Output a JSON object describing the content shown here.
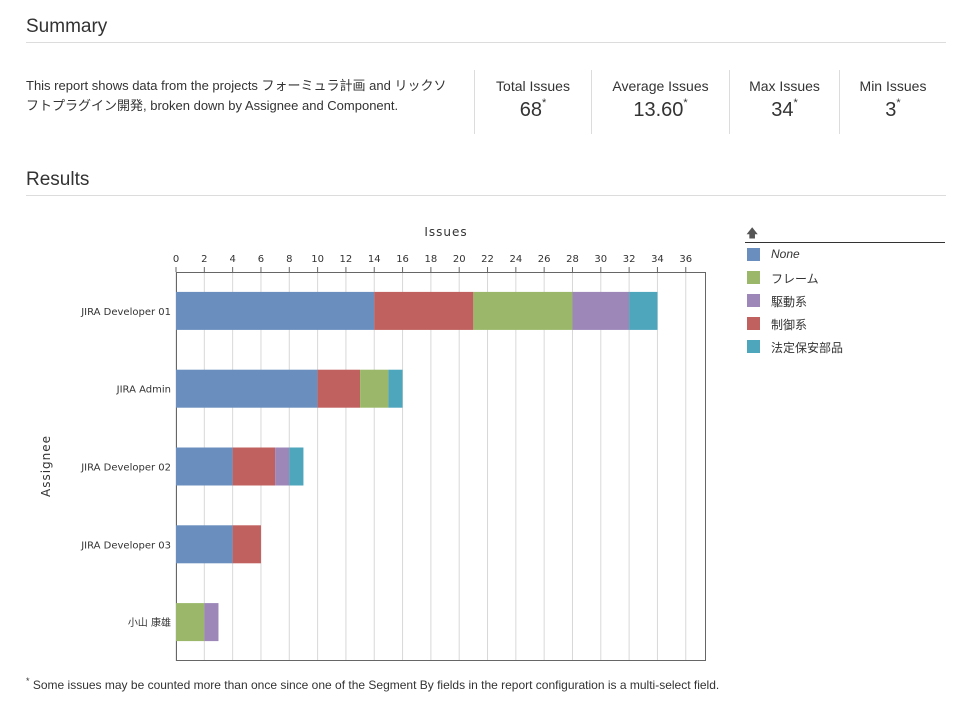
{
  "summary": {
    "title": "Summary",
    "description": "This report shows data from the projects フォーミュラ計画 and リックソフトプラグイン開発, broken down by Assignee and Component.",
    "stats": [
      {
        "label": "Total Issues",
        "value": "68",
        "mark": "*"
      },
      {
        "label": "Average Issues",
        "value": "13.60",
        "mark": "*"
      },
      {
        "label": "Max Issues",
        "value": "34",
        "mark": "*"
      },
      {
        "label": "Min Issues",
        "value": "3",
        "mark": "*"
      }
    ]
  },
  "results": {
    "title": "Results"
  },
  "legend": {
    "sort_icon": "arrow-up-icon"
  },
  "footnote": {
    "mark": "*",
    "text": "Some issues may be counted more than once since one of the Segment By fields in the report configuration is a multi-select field."
  },
  "chart_data": {
    "type": "bar",
    "orientation": "horizontal",
    "stacked": true,
    "xlabel": "Issues",
    "ylabel": "Assignee",
    "xlim": [
      0,
      37
    ],
    "xticks": [
      0,
      2,
      4,
      6,
      8,
      10,
      12,
      14,
      16,
      18,
      20,
      22,
      24,
      26,
      28,
      30,
      32,
      34,
      36
    ],
    "grid": true,
    "legend_position": "right",
    "categories": [
      "JIRA Developer 01",
      "JIRA Admin",
      "JIRA Developer 02",
      "JIRA Developer 03",
      "小山 康雄"
    ],
    "series": [
      {
        "name": "None",
        "color": "#6a8fbf",
        "values": [
          14,
          10,
          4,
          4,
          0
        ]
      },
      {
        "name": "制御系",
        "color": "#c0605f",
        "values": [
          7,
          3,
          3,
          2,
          0
        ]
      },
      {
        "name": "フレーム",
        "color": "#9bb86a",
        "values": [
          7,
          2,
          0,
          0,
          2
        ]
      },
      {
        "name": "駆動系",
        "color": "#9c87b8",
        "values": [
          4,
          0,
          1,
          0,
          1
        ]
      },
      {
        "name": "法定保安部品",
        "color": "#4ea6bd",
        "values": [
          2,
          1,
          1,
          0,
          0
        ]
      }
    ],
    "legend_order": [
      "None",
      "フレーム",
      "駆動系",
      "制御系",
      "法定保安部品"
    ]
  }
}
